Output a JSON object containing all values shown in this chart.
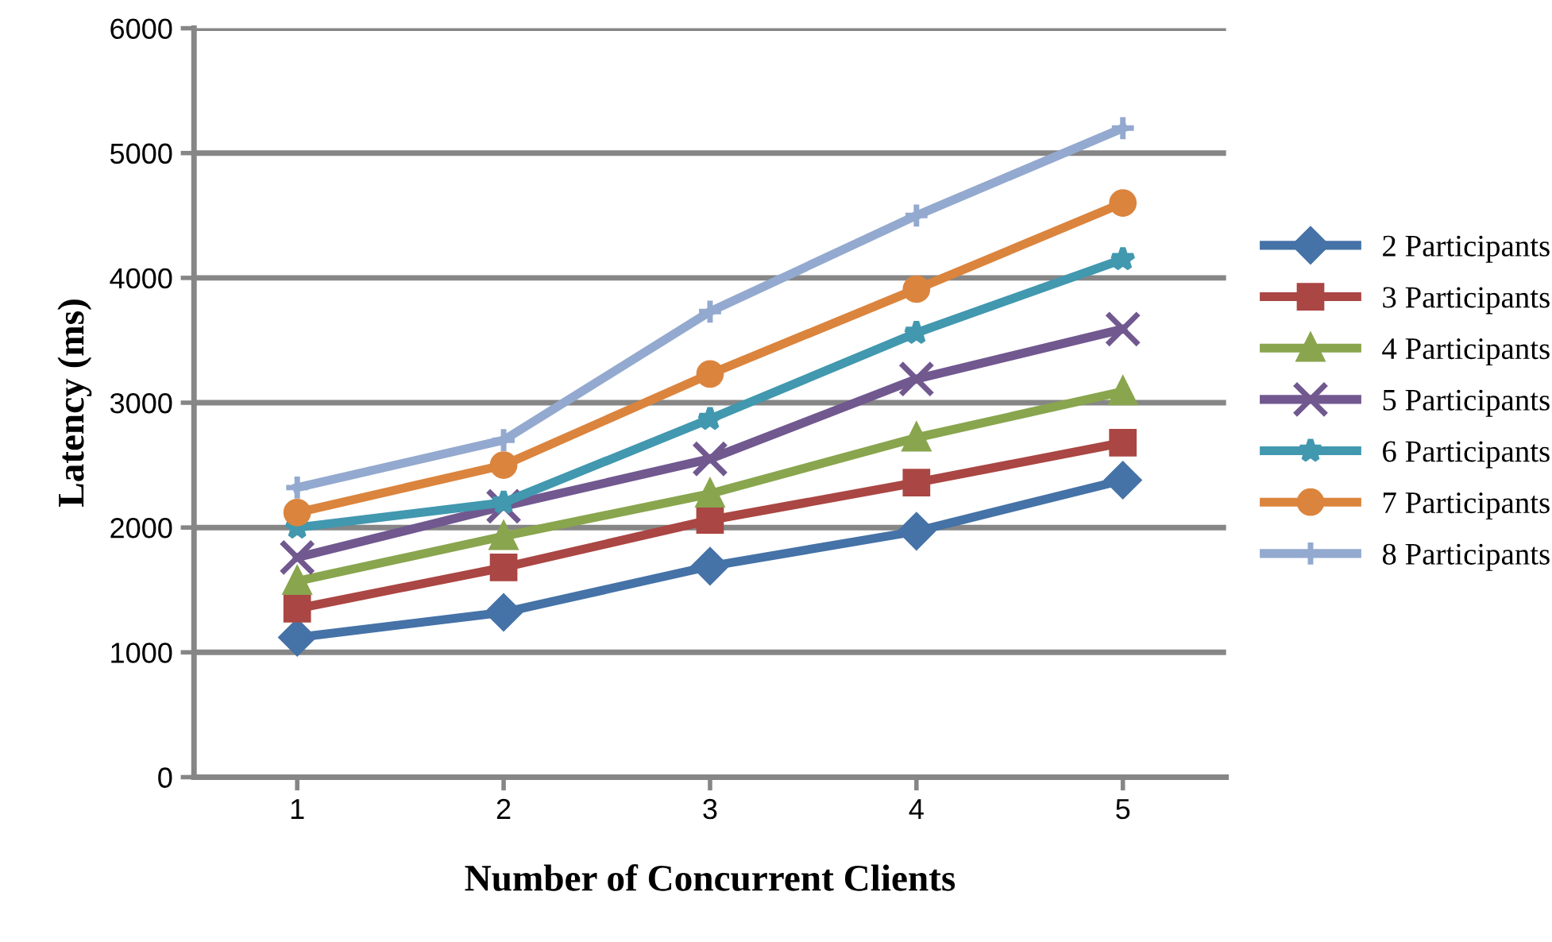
{
  "chart_data": {
    "type": "line",
    "xlabel": "Number of Concurrent Clients",
    "ylabel": "Latency (ms)",
    "categories": [
      "1",
      "2",
      "3",
      "4",
      "5"
    ],
    "ylim": [
      0,
      6000
    ],
    "yticks": [
      0,
      1000,
      2000,
      3000,
      4000,
      5000,
      6000
    ],
    "grid": "y",
    "legend": "right",
    "line_style": "solid",
    "series": [
      {
        "name": "2 Participants",
        "color": "#4572a7",
        "marker": "diamond",
        "values": [
          1120,
          1320,
          1690,
          1970,
          2380
        ]
      },
      {
        "name": "3 Participants",
        "color": "#aa4643",
        "marker": "square",
        "values": [
          1350,
          1680,
          2060,
          2360,
          2680
        ]
      },
      {
        "name": "4 Participants",
        "color": "#89a54e",
        "marker": "triangle",
        "values": [
          1570,
          1930,
          2270,
          2720,
          3090
        ]
      },
      {
        "name": "5 Participants",
        "color": "#71588f",
        "marker": "cross",
        "values": [
          1760,
          2170,
          2550,
          3190,
          3590
        ]
      },
      {
        "name": "6 Participants",
        "color": "#4198af",
        "marker": "star",
        "values": [
          2000,
          2200,
          2870,
          3560,
          4150
        ]
      },
      {
        "name": "7 Participants",
        "color": "#db843d",
        "marker": "circle",
        "values": [
          2120,
          2500,
          3230,
          3910,
          4600
        ]
      },
      {
        "name": "8 Participants",
        "color": "#93a9cf",
        "marker": "plus",
        "values": [
          2320,
          2700,
          3730,
          4500,
          5200
        ]
      }
    ]
  }
}
